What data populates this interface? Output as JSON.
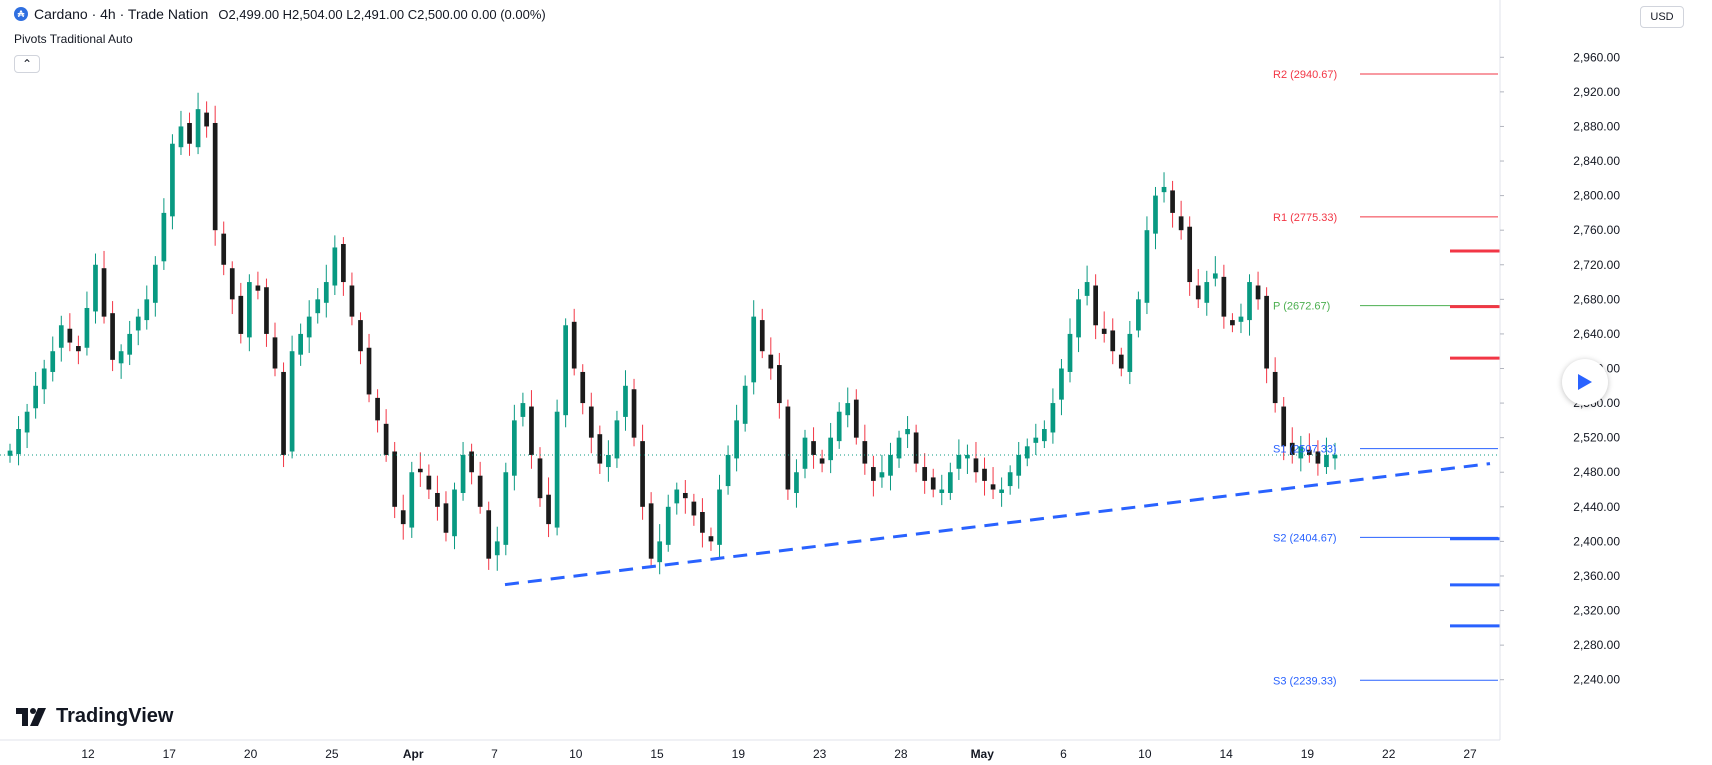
{
  "header": {
    "symbol_icon": "cardano-coin-icon",
    "title": "Cardano · 4h · Trade Nation",
    "ohlc": "O2,499.00 H2,504.00 L2,491.00 C2,500.00 0.00 (0.00%)"
  },
  "indicator": {
    "label": "Pivots Traditional Auto",
    "collapse_icon": "chevron-up-icon"
  },
  "currency": "USD",
  "logo_text": "TradingView",
  "play_icon": "play-icon",
  "colors": {
    "bull": "#089981",
    "bear": "#f23645",
    "candle_body": "#1b1b1b",
    "resistance": "#f23645",
    "support": "#2962ff",
    "pivot": "#4caf50",
    "trendline": "#2962ff"
  },
  "chart_data": {
    "type": "candlestick",
    "ylim": [
      2220,
      2980
    ],
    "y_ticks": [
      "2,960.00",
      "2,920.00",
      "2,880.00",
      "2,840.00",
      "2,800.00",
      "2,760.00",
      "2,720.00",
      "2,680.00",
      "2,640.00",
      "2,600.00",
      "2,560.00",
      "2,520.00",
      "2,480.00",
      "2,440.00",
      "2,400.00",
      "2,360.00",
      "2,320.00",
      "2,280.00",
      "2,240.00"
    ],
    "x_ticks": [
      "12",
      "17",
      "20",
      "25",
      "Apr",
      "7",
      "10",
      "15",
      "19",
      "23",
      "28",
      "May",
      "6",
      "10",
      "14",
      "19",
      "22",
      "27"
    ],
    "close_mids": [
      2505,
      2530,
      2550,
      2580,
      2600,
      2620,
      2650,
      2630,
      2620,
      2670,
      2720,
      2660,
      2610,
      2620,
      2640,
      2660,
      2680,
      2720,
      2780,
      2860,
      2880,
      2860,
      2900,
      2880,
      2760,
      2720,
      2680,
      2640,
      2700,
      2690,
      2640,
      2600,
      2500,
      2620,
      2640,
      2660,
      2680,
      2700,
      2740,
      2700,
      2660,
      2620,
      2570,
      2540,
      2500,
      2440,
      2420,
      2480,
      2480,
      2460,
      2440,
      2410,
      2460,
      2500,
      2480,
      2440,
      2380,
      2400,
      2480,
      2540,
      2560,
      2500,
      2450,
      2420,
      2550,
      2650,
      2600,
      2560,
      2520,
      2490,
      2500,
      2540,
      2580,
      2520,
      2440,
      2380,
      2400,
      2440,
      2460,
      2450,
      2430,
      2410,
      2400,
      2460,
      2500,
      2540,
      2580,
      2660,
      2620,
      2600,
      2560,
      2460,
      2480,
      2520,
      2500,
      2490,
      2520,
      2550,
      2560,
      2520,
      2490,
      2470,
      2480,
      2500,
      2520,
      2530,
      2490,
      2470,
      2460,
      2460,
      2480,
      2500,
      2500,
      2480,
      2470,
      2460,
      2460,
      2480,
      2500,
      2510,
      2520,
      2530,
      2560,
      2600,
      2640,
      2680,
      2700,
      2650,
      2640,
      2620,
      2600,
      2640,
      2680,
      2760,
      2800,
      2810,
      2780,
      2760,
      2700,
      2680,
      2700,
      2710,
      2660,
      2650,
      2660,
      2700,
      2680,
      2600,
      2560,
      2510,
      2500,
      2510,
      2500,
      2490,
      2500,
      2500
    ],
    "pivots": [
      {
        "label": "R2 (2940.67)",
        "value": 2940.67,
        "kind": "resistance"
      },
      {
        "label": "R1 (2775.33)",
        "value": 2775.33,
        "kind": "resistance"
      },
      {
        "label": "P (2672.67)",
        "value": 2672.67,
        "kind": "pivot"
      },
      {
        "label": "S1 (2507.33)",
        "value": 2507.33,
        "kind": "support"
      },
      {
        "label": "S2 (2404.67)",
        "value": 2404.67,
        "kind": "support"
      },
      {
        "label": "S3 (2239.33)",
        "value": 2239.33,
        "kind": "support"
      }
    ],
    "levels": [
      {
        "label": "2,735.97",
        "value": 2735.97,
        "kind": "resistance"
      },
      {
        "label": "2,671.58",
        "value": 2671.58,
        "kind": "resistance"
      },
      {
        "label": "2,612.06",
        "value": 2612.06,
        "kind": "resistance"
      },
      {
        "label": "2,403.10",
        "value": 2403.1,
        "kind": "support"
      },
      {
        "label": "2,349.64",
        "value": 2349.64,
        "kind": "support"
      },
      {
        "label": "2,302.26",
        "value": 2302.26,
        "kind": "support"
      }
    ],
    "last_price": {
      "label": "2,500.00",
      "value": 2500.0
    },
    "trendline": {
      "from_value": 2350,
      "to_value": 2490
    }
  }
}
